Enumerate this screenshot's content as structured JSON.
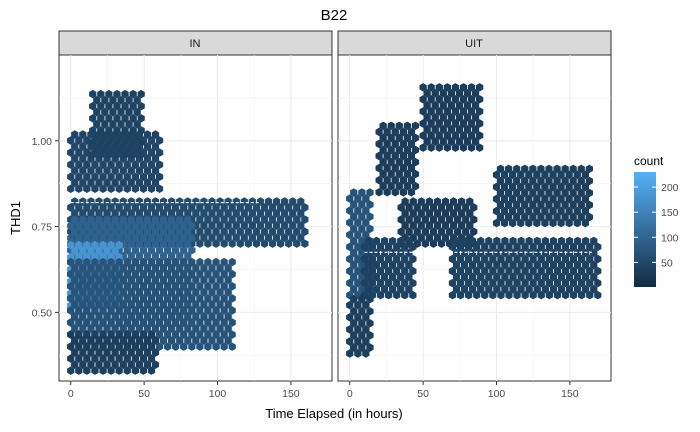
{
  "chart_data": {
    "type": "heatmap",
    "subtype": "hexbin",
    "title": "B22",
    "xlabel": "Time Elapsed (in hours)",
    "ylabel": "THD1",
    "xlim": [
      -8,
      178
    ],
    "ylim": [
      0.3,
      1.25
    ],
    "x_ticks": [
      0,
      50,
      100,
      150
    ],
    "y_ticks": [
      0.5,
      0.75,
      1.0
    ],
    "y_tick_labels": [
      "0.50",
      "0.75",
      "1.00"
    ],
    "grid": true,
    "facets": [
      {
        "label": "IN",
        "regions": [
          {
            "x0": 0,
            "x1": 62,
            "y0": 0.86,
            "y1": 1.02,
            "count": 45
          },
          {
            "x0": 15,
            "x1": 48,
            "y0": 0.96,
            "y1": 1.15,
            "count": 40
          },
          {
            "x0": 0,
            "x1": 160,
            "y0": 0.7,
            "y1": 0.84,
            "count": 55
          },
          {
            "x0": 0,
            "x1": 85,
            "y0": 0.47,
            "y1": 0.78,
            "count": 95
          },
          {
            "x0": 0,
            "x1": 35,
            "y0": 0.52,
            "y1": 0.7,
            "count": 180
          },
          {
            "x0": 0,
            "x1": 110,
            "y0": 0.4,
            "y1": 0.66,
            "count": 70
          },
          {
            "x0": 0,
            "x1": 60,
            "y0": 0.33,
            "y1": 0.45,
            "count": 35
          }
        ],
        "dashed_level": 0.82,
        "dashed_range": [
          0,
          128
        ]
      },
      {
        "label": "UIT",
        "regions": [
          {
            "x0": 50,
            "x1": 90,
            "y0": 0.98,
            "y1": 1.17,
            "count": 30
          },
          {
            "x0": 20,
            "x1": 45,
            "y0": 0.85,
            "y1": 1.05,
            "count": 30
          },
          {
            "x0": 100,
            "x1": 165,
            "y0": 0.76,
            "y1": 0.92,
            "count": 35
          },
          {
            "x0": 35,
            "x1": 85,
            "y0": 0.7,
            "y1": 0.84,
            "count": 30
          },
          {
            "x0": 0,
            "x1": 15,
            "y0": 0.55,
            "y1": 0.85,
            "count": 70
          },
          {
            "x0": 10,
            "x1": 45,
            "y0": 0.55,
            "y1": 0.72,
            "count": 40
          },
          {
            "x0": 70,
            "x1": 170,
            "y0": 0.55,
            "y1": 0.72,
            "count": 40
          },
          {
            "x0": 0,
            "x1": 15,
            "y0": 0.38,
            "y1": 0.55,
            "count": 35
          }
        ],
        "dashed_level": 0.675,
        "dashed_range": [
          10,
          165
        ]
      }
    ],
    "legend": {
      "title": "count",
      "placement": "right",
      "breaks": [
        50,
        100,
        150,
        200
      ],
      "range": [
        1,
        230
      ],
      "low_color": "#132B43",
      "high_color": "#56B1F7"
    }
  }
}
